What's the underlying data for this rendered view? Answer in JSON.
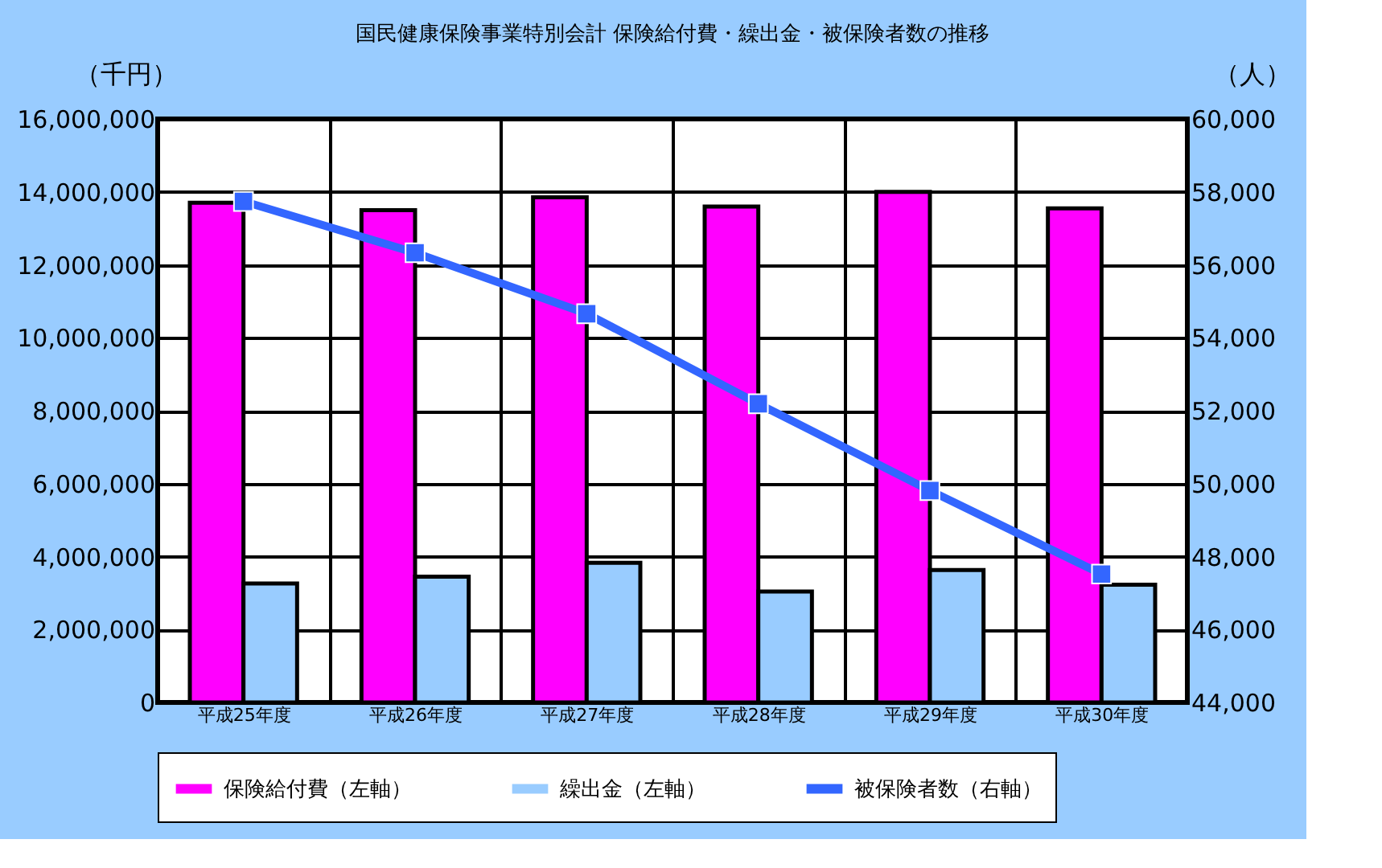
{
  "chart_data": {
    "type": "bar",
    "title": "国民健康保険事業特別会計 保険給付費・繰出金・被保険者数の推移",
    "ylabel": "（千円）",
    "y2label": "（人）",
    "categories": [
      "平成25年度",
      "平成26年度",
      "平成27年度",
      "平成28年度",
      "平成29年度",
      "平成30年度"
    ],
    "series": [
      {
        "name": "保険給付費（左軸）",
        "color": "#ff00ff",
        "values": [
          13700000,
          13500000,
          13850000,
          13600000,
          14000000,
          13550000
        ]
      },
      {
        "name": "繰出金（左軸）",
        "color": "#99ccff",
        "values": [
          3260000,
          3450000,
          3830000,
          3040000,
          3630000,
          3230000
        ]
      },
      {
        "name": "被保険者数（右軸）",
        "type": "line",
        "axis": "y2",
        "color": "#3366ff",
        "marker": "square",
        "values": [
          57740,
          56330,
          54660,
          52190,
          49810,
          47520
        ]
      }
    ],
    "ylim": [
      0,
      16000000
    ],
    "yticks": [
      0,
      {
        "value": 2000000,
        "label": "2,000,000"
      },
      {
        "value": 4000000,
        "label": "4,000,000"
      },
      {
        "value": 6000000,
        "label": "6,000,000"
      },
      {
        "value": 8000000,
        "label": "8,000,000"
      },
      {
        "value": 10000000,
        "label": "10,000,000"
      },
      {
        "value": 12000000,
        "label": "12,000,000"
      },
      {
        "value": 14000000,
        "label": "14,000,000"
      },
      {
        "value": 16000000,
        "label": "16,000,000"
      }
    ],
    "y2lim": [
      44000,
      60000
    ],
    "y2ticks": [
      {
        "value": 44000,
        "label": "44,000"
      },
      {
        "value": 46000,
        "label": "46,000"
      },
      {
        "value": 48000,
        "label": "48,000"
      },
      {
        "value": 50000,
        "label": "50,000"
      },
      {
        "value": 52000,
        "label": "52,000"
      },
      {
        "value": 54000,
        "label": "54,000"
      },
      {
        "value": 56000,
        "label": "56,000"
      },
      {
        "value": 58000,
        "label": "58,000"
      },
      {
        "value": 60000,
        "label": "60,000"
      }
    ],
    "grid": true,
    "legend": "bottom"
  }
}
